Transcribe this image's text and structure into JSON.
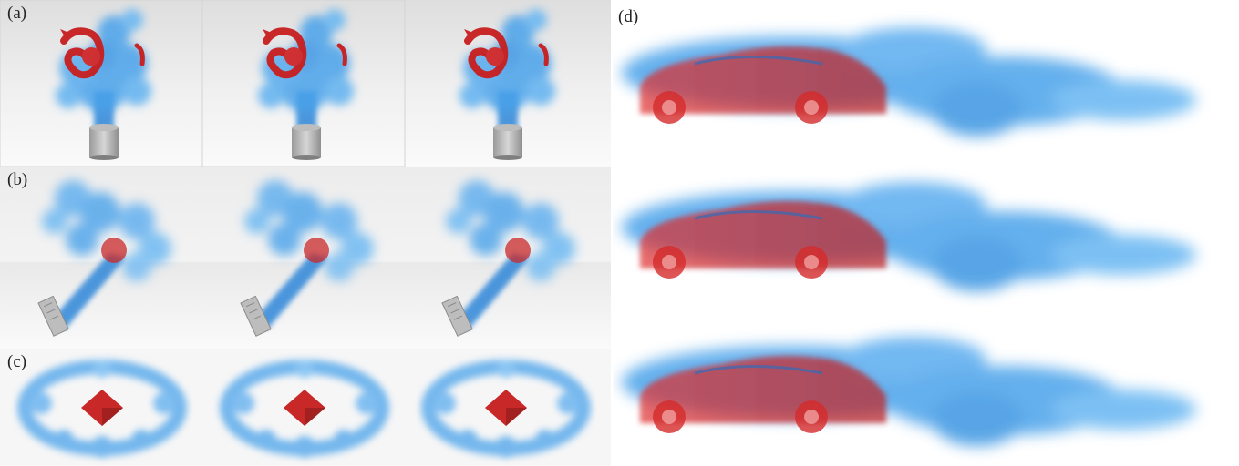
{
  "figure": {
    "panels": [
      {
        "id": "a",
        "label": "(a)",
        "subject": "dragon-smoke",
        "frames": 3
      },
      {
        "id": "b",
        "label": "(b)",
        "subject": "ball-jet-smoke",
        "frames": 3
      },
      {
        "id": "c",
        "label": "(c)",
        "subject": "vortex-ring-smoke",
        "frames": 3
      },
      {
        "id": "d",
        "label": "(d)",
        "subject": "car-smoke",
        "frames": 3
      }
    ],
    "colors": {
      "smoke": "#3a9ae6",
      "smoke_dark": "#1f6fc4",
      "object_red": "#d42a2a",
      "floor": "#f2f2f2",
      "wall": "#e4e4e4"
    }
  }
}
